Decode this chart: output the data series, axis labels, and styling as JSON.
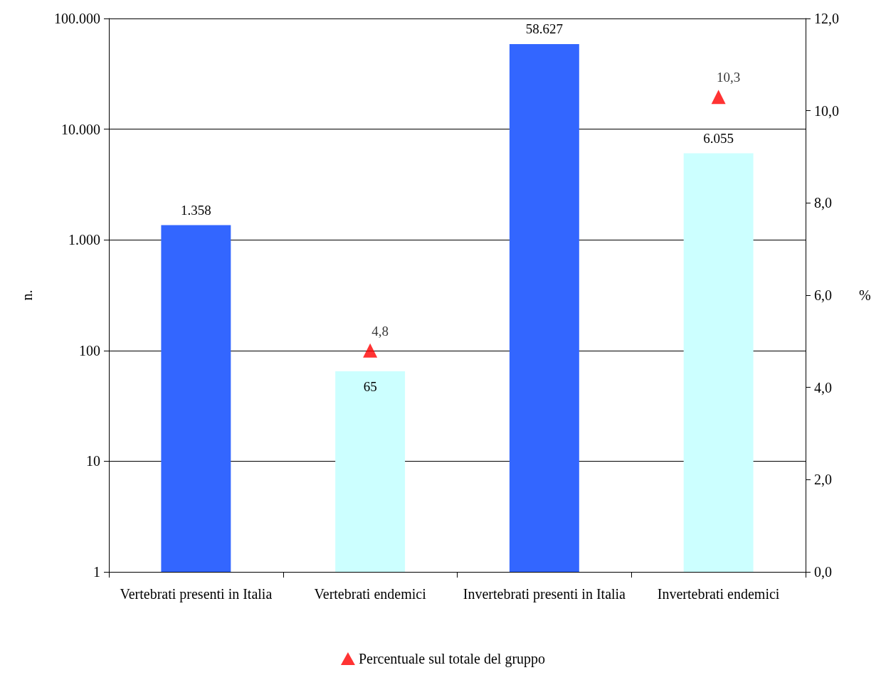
{
  "chart_data": {
    "type": "bar",
    "categories": [
      "Vertebrati presenti in Italia",
      "Vertebrati endemici",
      "Invertebrati presenti in Italia",
      "Invertebrati endemici"
    ],
    "ylabel": "n.",
    "y2label": "%",
    "log": "y",
    "grid": "y",
    "legend": "bottom",
    "ylim": [
      1,
      100000
    ],
    "yticks": [
      1,
      10,
      100,
      {
        "value": 1000,
        "label": "1.000"
      },
      {
        "value": 10000,
        "label": "10.000"
      },
      {
        "value": 100000,
        "label": "100.000"
      }
    ],
    "y2lim": [
      0,
      12
    ],
    "y2ticks": [
      {
        "value": 0,
        "label": "0,0"
      },
      {
        "value": 2,
        "label": "2,0"
      },
      {
        "value": 4,
        "label": "4,0"
      },
      {
        "value": 6,
        "label": "6,0"
      },
      {
        "value": 8,
        "label": "8,0"
      },
      {
        "value": 10,
        "label": "10,0"
      },
      {
        "value": 12,
        "label": "12,0"
      }
    ],
    "series": [
      {
        "colors": [
          "#3366ff",
          "#ccffff",
          "#3366ff",
          "#ccffff"
        ],
        "values": [
          1358,
          65,
          58627,
          6055
        ],
        "value_labels": [
          "1.358",
          "65",
          "58.627",
          "6.055"
        ]
      },
      {
        "type": "scatter",
        "name": "Percentuale sul totale del gruppo",
        "axis": "y2",
        "marker": "triangle",
        "color": "#ff0000",
        "values": [
          null,
          4.8,
          null,
          10.3
        ],
        "value_labels": [
          null,
          "4,8",
          null,
          "10,3"
        ]
      }
    ]
  }
}
